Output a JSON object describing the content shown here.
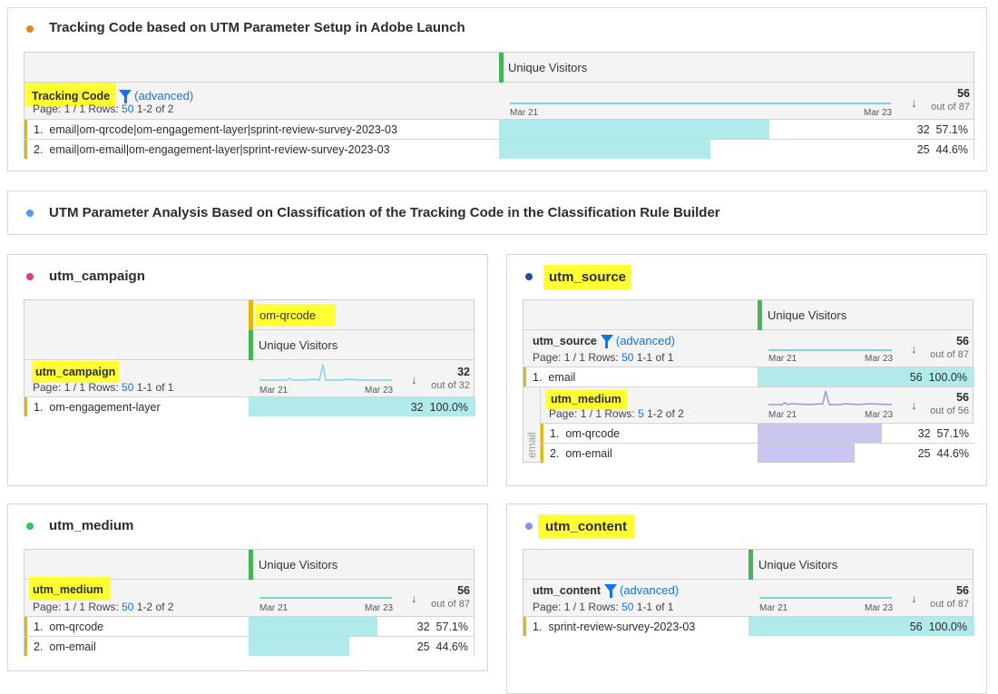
{
  "common": {
    "metric": "Unique Visitors",
    "advanced": "(advanced)",
    "axis_start": "Mar 21",
    "axis_end": "Mar 23",
    "sort_icon": "arrow-down-icon",
    "highlight_color": "#ffff33",
    "bar_color": "#b0eaeb",
    "nested_bar_color": "#c8c5ee"
  },
  "panel1": {
    "title": "Tracking Code based on UTM Parameter Setup in Adobe Launch",
    "dot_color": "#e68619",
    "dimension": "Tracking Code",
    "page": "Page: 1 / 1 Rows:",
    "rows_per_page": "50",
    "range": "1-2 of 2",
    "total": "56",
    "out_of": "out of 87",
    "rows": [
      {
        "n": "1.",
        "label": "email|om-qrcode|om-engagement-layer|sprint-review-survey-2023-03",
        "value": "32",
        "pct": "57.1%",
        "fill": 0.571
      },
      {
        "n": "2.",
        "label": "email|om-email|om-engagement-layer|sprint-review-survey-2023-03",
        "value": "25",
        "pct": "44.6%",
        "fill": 0.446
      }
    ]
  },
  "panel2": {
    "title": "UTM Parameter Analysis Based on Classification of the Tracking Code in the Classification Rule Builder",
    "dot_color": "#4b9cf5"
  },
  "campaign": {
    "title": "utm_campaign",
    "dot_color": "#e0398a",
    "segment": "om-qrcode",
    "dimension": "utm_campaign",
    "page": "Page: 1 / 1 Rows:",
    "rows_per_page": "50",
    "range": "1-1 of 1",
    "total": "32",
    "out_of": "out of 32",
    "rows": [
      {
        "n": "1.",
        "label": "om-engagement-layer",
        "value": "32",
        "pct": "100.0%",
        "fill": 1
      }
    ]
  },
  "source": {
    "title": "utm_source",
    "dot_color": "#1a4ea8",
    "dimension": "utm_source",
    "page": "Page: 1 / 1 Rows:",
    "rows_per_page": "50",
    "range": "1-1 of 1",
    "total": "56",
    "out_of": "out of 87",
    "rows": [
      {
        "n": "1.",
        "label": "email",
        "value": "56",
        "pct": "100.0%",
        "fill": 1
      }
    ],
    "nested": {
      "parent": "email",
      "dimension": "utm_medium",
      "page": "Page: 1 / 1 Rows:",
      "rows_per_page": "5",
      "range": "1-2 of 2",
      "total": "56",
      "out_of": "out of 56",
      "rows": [
        {
          "n": "1.",
          "label": "om-qrcode",
          "value": "32",
          "pct": "57.1%",
          "fill": 0.571
        },
        {
          "n": "2.",
          "label": "om-email",
          "value": "25",
          "pct": "44.6%",
          "fill": 0.446
        }
      ]
    }
  },
  "medium": {
    "title": "utm_medium",
    "dot_color": "#2dc56e",
    "dimension": "utm_medium",
    "page": "Page: 1 / 1 Rows:",
    "rows_per_page": "50",
    "range": "1-2 of 2",
    "total": "56",
    "out_of": "out of 87",
    "rows": [
      {
        "n": "1.",
        "label": "om-qrcode",
        "value": "32",
        "pct": "57.1%",
        "fill": 0.571
      },
      {
        "n": "2.",
        "label": "om-email",
        "value": "25",
        "pct": "44.6%",
        "fill": 0.446
      }
    ]
  },
  "content": {
    "title": "utm_content",
    "dot_color": "#8e8ef0",
    "dimension": "utm_content",
    "page": "Page: 1 / 1 Rows:",
    "rows_per_page": "50",
    "range": "1-1 of 1",
    "total": "56",
    "out_of": "out of 87",
    "rows": [
      {
        "n": "1.",
        "label": "sprint-review-survey-2023-03",
        "value": "56",
        "pct": "100.0%",
        "fill": 1
      }
    ]
  }
}
